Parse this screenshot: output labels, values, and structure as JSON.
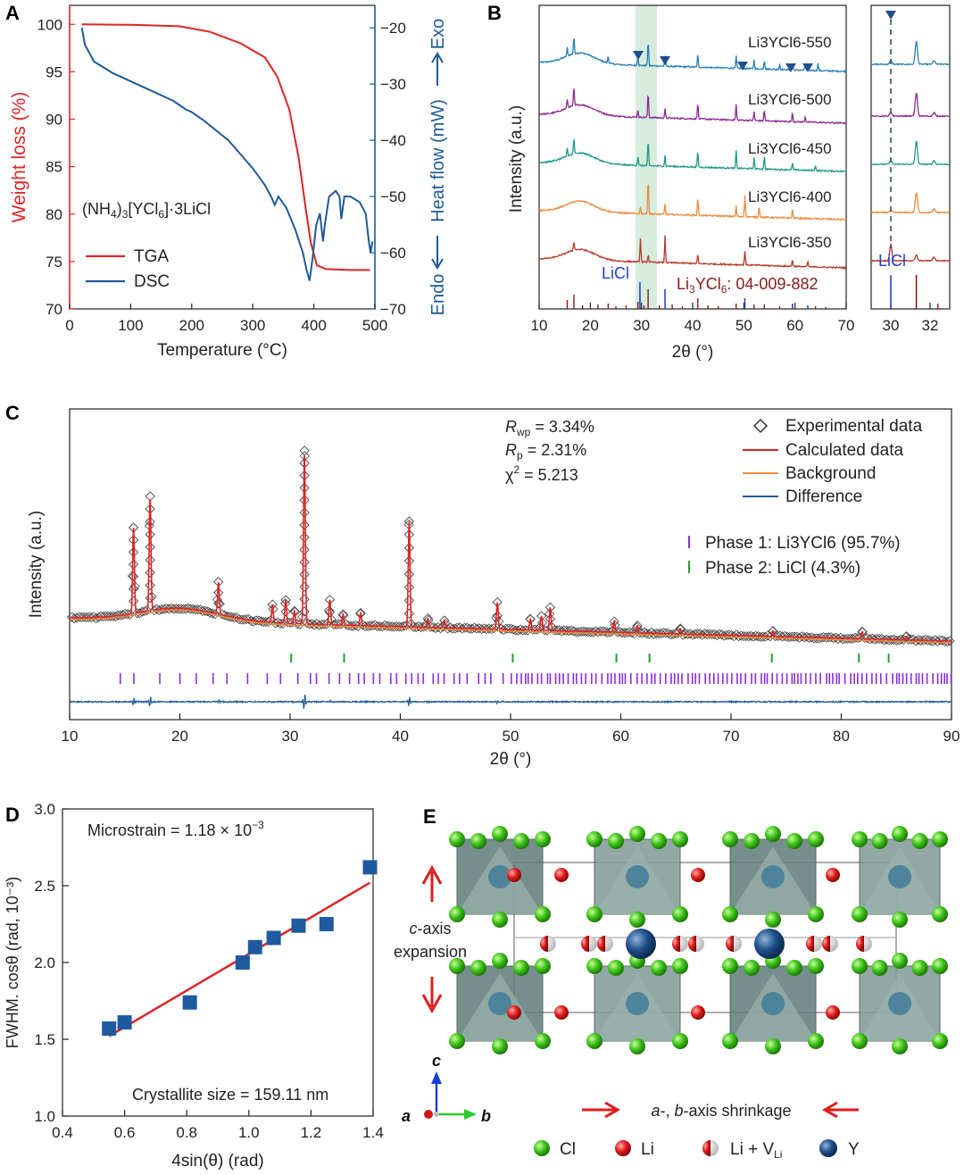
{
  "panels": {
    "A": "A",
    "B": "B",
    "C": "C",
    "D": "D",
    "E": "E"
  },
  "panelA": {
    "compound_main": "(NH",
    "compound_sub1": "4",
    "compound_mid": ")",
    "compound_sub2": "3",
    "compound_end": "[YCl",
    "compound_sub3": "6",
    "compound_tail": "]·3LiCl",
    "xlabel": "Temperature (°C)",
    "ylabel_left": "Weight loss (%)",
    "ylabel_right": "Heat flow (mW)",
    "exo": "Exo",
    "endo": "Endo",
    "xticks": [
      "0",
      "100",
      "200",
      "300",
      "400",
      "500"
    ],
    "yticks_left": [
      "70",
      "75",
      "80",
      "85",
      "90",
      "95",
      "100"
    ],
    "yticks_right": [
      "−70",
      "−60",
      "−50",
      "−40",
      "−30",
      "−20"
    ],
    "legend_tga": "TGA",
    "legend_dsc": "DSC",
    "color_tga": "#e02424",
    "color_dsc": "#1f5a96"
  },
  "panelB": {
    "ylabel": "Intensity (a.u.)",
    "xlabel": "2θ (°)",
    "xticks": [
      "10",
      "20",
      "30",
      "40",
      "50",
      "60",
      "70"
    ],
    "xticks_inset": [
      "30",
      "32"
    ],
    "series": [
      {
        "name": "Li3YCl6-550",
        "color": "#2a7fb8"
      },
      {
        "name": "Li3YCl6-500",
        "color": "#8e2a96"
      },
      {
        "name": "Li3YCl6-450",
        "color": "#1f9a8a"
      },
      {
        "name": "Li3YCl6-400",
        "color": "#ee8a3c"
      },
      {
        "name": "Li3YCl6-350",
        "color": "#b83a2a"
      }
    ],
    "ref_licl": "LiCl",
    "ref_yc_pre": "Li",
    "ref_yc_s1": "3",
    "ref_yc_mid": "YCl",
    "ref_yc_s2": "6",
    "ref_yc_post": ": 04-009-882",
    "inset_licl": "LiCl"
  },
  "panelC": {
    "ylabel": "Intensity (a.u.)",
    "xlabel": "2θ (°)",
    "xticks": [
      "10",
      "20",
      "30",
      "40",
      "50",
      "60",
      "70",
      "80",
      "90"
    ],
    "rwp": " = 3.34%",
    "rp": " = 2.31%",
    "chi": " = 5.213",
    "legend": [
      "Experimental data",
      "Calculated data",
      "Background",
      "Difference"
    ],
    "phase1": "Phase 1: Li3YCl6 (95.7%)",
    "phase2": "Phase 2: LiCl (4.3%)"
  },
  "chart_data": [
    {
      "type": "scatter",
      "panel": "D",
      "xlabel": "4sin(θ) (rad)",
      "ylabel": "FWHM. cosθ (rad, 10⁻³)",
      "xlim": [
        0.4,
        1.4
      ],
      "ylim": [
        1.0,
        3.0
      ],
      "x": [
        0.55,
        0.6,
        0.81,
        0.98,
        1.02,
        1.08,
        1.16,
        1.25,
        1.39
      ],
      "y": [
        1.57,
        1.61,
        1.74,
        2.0,
        2.1,
        2.16,
        2.24,
        2.25,
        2.62
      ],
      "fit": {
        "x": [
          0.55,
          1.39
        ],
        "y": [
          1.52,
          2.52
        ]
      },
      "xticks": [
        "0.4",
        "0.6",
        "0.8",
        "1.0",
        "1.2",
        "1.4"
      ],
      "yticks": [
        "1.0",
        "1.5",
        "2.0",
        "2.5",
        "3.0"
      ],
      "microstrain": "Microstrain = 1.18 × 10",
      "microstrain_exp": "−3",
      "crystallite": "Crystallite size = 159.11 nm"
    }
  ],
  "panelE": {
    "c_axis_1": "c",
    "c_axis_2": "-axis",
    "expansion": "expansion",
    "shrink_a": "a",
    "shrink_mid": "-, ",
    "shrink_b": "b",
    "shrink_end": "-axis shrinkage",
    "axis_c": "c",
    "axis_a": "a",
    "axis_b": "b",
    "legend_cl": "Cl",
    "legend_li": "Li",
    "legend_livli": "Li + V",
    "legend_livli_sub": "Li",
    "legend_y": "Y"
  }
}
